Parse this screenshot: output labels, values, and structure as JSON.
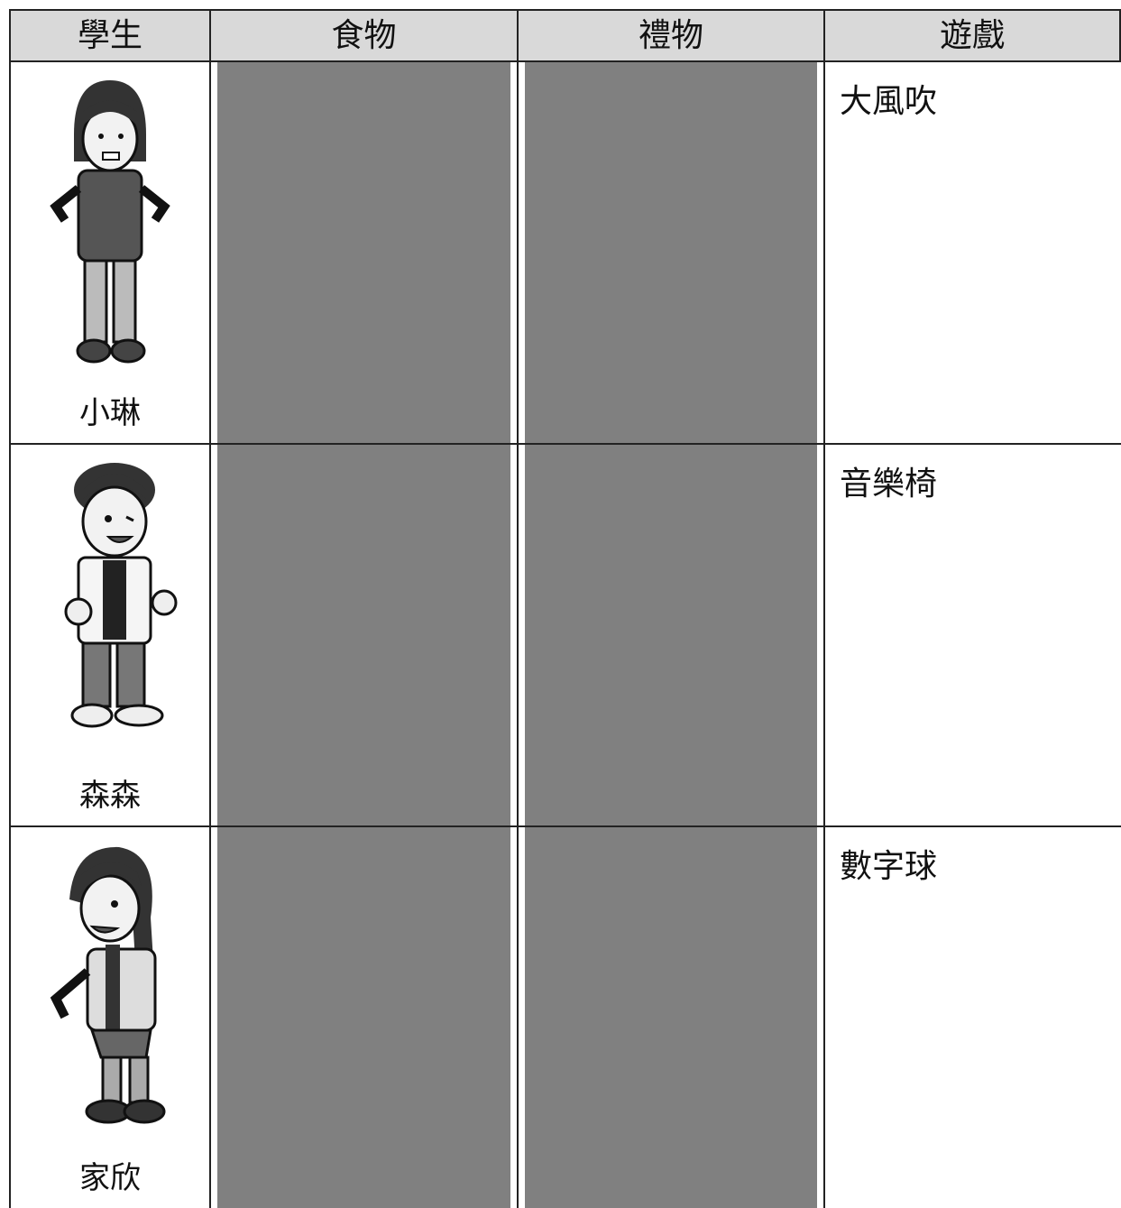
{
  "table": {
    "header": [
      "學生",
      "食物",
      "禮物",
      "遊戲"
    ],
    "rows": [
      {
        "student": "小琳",
        "game": "大風吹"
      },
      {
        "student": "森森",
        "game": "音樂椅"
      },
      {
        "student": "家欣",
        "game": "數字球"
      }
    ]
  }
}
